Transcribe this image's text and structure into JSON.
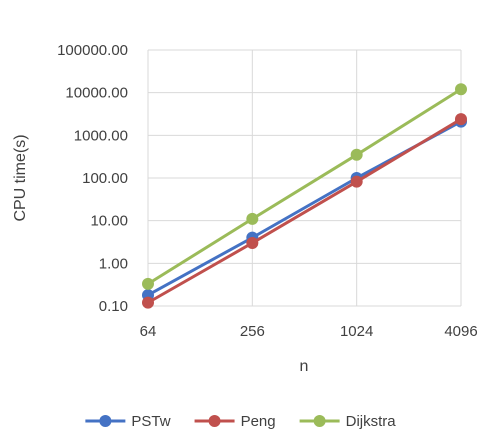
{
  "chart_data": {
    "type": "line",
    "title": "",
    "xlabel": "n",
    "ylabel": "CPU time(s)",
    "x_scale": "log2",
    "y_scale": "log10",
    "categories": [
      "64",
      "256",
      "1024",
      "4096"
    ],
    "y_tick_labels": [
      "0.10",
      "1.00",
      "10.00",
      "100.00",
      "1000.00",
      "10000.00",
      "100000.00"
    ],
    "y_ticks": [
      0.1,
      1,
      10,
      100,
      1000,
      10000,
      100000
    ],
    "ylim": [
      0.1,
      100000
    ],
    "grid": true,
    "legend_position": "bottom",
    "series": [
      {
        "name": "PSTw",
        "color": "#4472C4",
        "values": [
          0.18,
          4.0,
          100,
          2100
        ]
      },
      {
        "name": "Peng",
        "color": "#C0504D",
        "values": [
          0.12,
          3.0,
          82,
          2400
        ]
      },
      {
        "name": "Dijkstra",
        "color": "#9BBB59",
        "values": [
          0.33,
          11,
          350,
          12000
        ]
      }
    ]
  }
}
